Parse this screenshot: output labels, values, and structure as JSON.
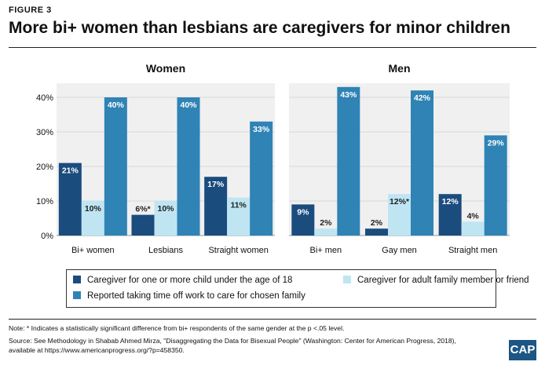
{
  "figure_label": "FIGURE 3",
  "title": "More bi+ women than lesbians are caregivers for minor children",
  "colors": {
    "dark": "#1b4c7e",
    "light": "#bfe5f3",
    "mid": "#2f83b5",
    "panel_bg": "#f0f0f0",
    "grid": "#d9d9d9"
  },
  "legend": [
    {
      "label": "Caregiver for one or more child under the age of 18",
      "color": "#1b4c7e"
    },
    {
      "label": "Caregiver for adult family member or friend",
      "color": "#bfe5f3"
    },
    {
      "label": "Reported taking time off work to care for chosen family",
      "color": "#2f83b5"
    }
  ],
  "chart_data": [
    {
      "type": "bar",
      "title": "Women",
      "categories": [
        "Bi+ women",
        "Lesbians",
        "Straight women"
      ],
      "series": [
        {
          "name": "Caregiver for one or more child under the age of 18",
          "values": [
            21,
            6,
            17
          ],
          "labels": [
            "21%",
            "6%*",
            "17%"
          ]
        },
        {
          "name": "Caregiver for adult family member or friend",
          "values": [
            10,
            10,
            11
          ],
          "labels": [
            "10%",
            "10%",
            "11%"
          ]
        },
        {
          "name": "Reported taking time off work to care for chosen family",
          "values": [
            40,
            40,
            33
          ],
          "labels": [
            "40%",
            "40%",
            "33%"
          ]
        }
      ],
      "ylim": [
        0,
        45
      ],
      "yticks": [
        "0%",
        "10%",
        "20%",
        "30%",
        "40%"
      ],
      "grid": true
    },
    {
      "type": "bar",
      "title": "Men",
      "categories": [
        "Bi+ men",
        "Gay men",
        "Straight men"
      ],
      "series": [
        {
          "name": "Caregiver for one or more child under the age of 18",
          "values": [
            9,
            2,
            12
          ],
          "labels": [
            "9%",
            "2%",
            "12%"
          ]
        },
        {
          "name": "Caregiver for adult family member or friend",
          "values": [
            2,
            12,
            4
          ],
          "labels": [
            "2%",
            "12%*",
            "4%"
          ]
        },
        {
          "name": "Reported taking time off work to care for chosen family",
          "values": [
            43,
            42,
            29
          ],
          "labels": [
            "43%",
            "42%",
            "29%"
          ]
        }
      ],
      "ylim": [
        0,
        45
      ],
      "grid": true
    }
  ],
  "notes": {
    "note": "Note: * Indicates a statistically significant difference from bi+ respondents of the same gender at the p <.05 level.",
    "source_line1": "Source: See Methodology in Shabab Ahmed Mirza, \"Disaggregating the Data for Bisexual People\" (Washington: Center for American Progress, 2018),",
    "source_line2": "available at https://www.americanprogress.org/?p=458350."
  },
  "logo_text": "CAP"
}
